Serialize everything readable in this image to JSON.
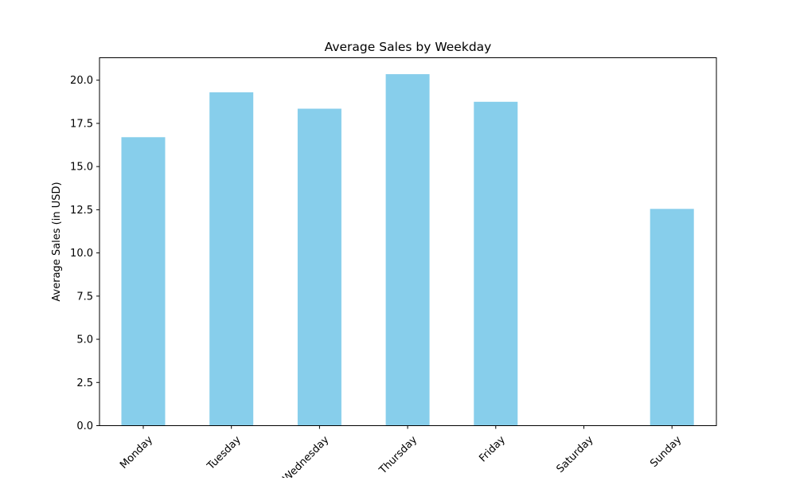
{
  "chart_data": {
    "type": "bar",
    "title": "Average Sales by Weekday",
    "xlabel": "",
    "ylabel": "Average Sales (in USD)",
    "categories": [
      "Monday",
      "Tuesday",
      "Wednesday",
      "Thursday",
      "Friday",
      "Saturday",
      "Sunday"
    ],
    "values": [
      16.7,
      19.3,
      18.35,
      20.35,
      18.75,
      0,
      12.55
    ],
    "ylim": [
      0,
      21.3
    ],
    "yticks": [
      0.0,
      2.5,
      5.0,
      7.5,
      10.0,
      12.5,
      15.0,
      17.5,
      20.0
    ],
    "ytick_labels": [
      "0.0",
      "2.5",
      "5.0",
      "7.5",
      "10.0",
      "12.5",
      "15.0",
      "17.5",
      "20.0"
    ],
    "grid": false,
    "bar_color": "#87ceeb"
  }
}
